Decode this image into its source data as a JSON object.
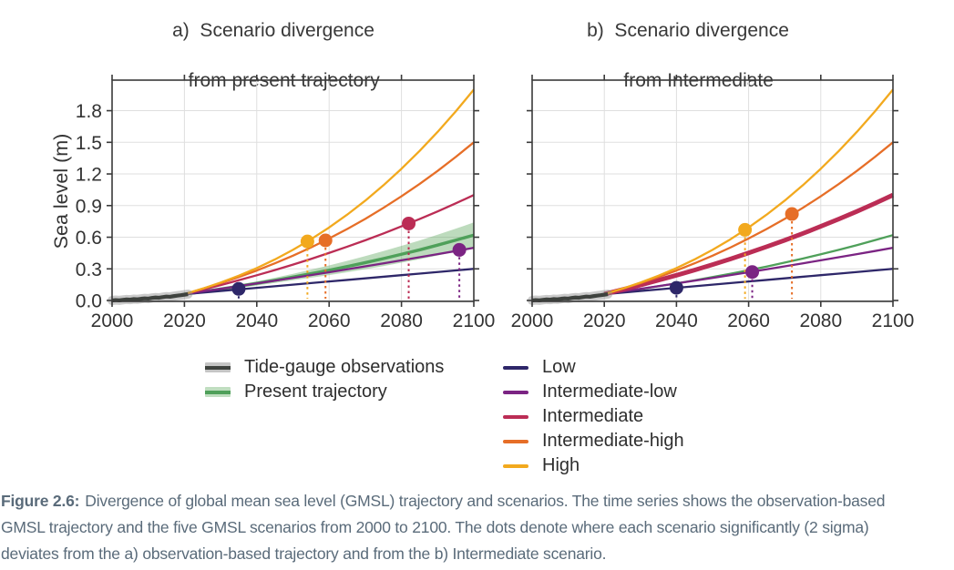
{
  "caption": {
    "label": "Figure 2.6:",
    "lines": [
      "Divergence of global mean sea level (GMSL) trajectory and scenarios. The time series shows the observation-based",
      "GMSL trajectory and the five GMSL scenarios from 2000 to 2100. The dots denote where each scenario significantly (2 sigma)",
      "deviates from the a) observation-based trajectory and from the b) Intermediate scenario."
    ],
    "color": "#5a6b7a"
  },
  "chart_data": {
    "type": "line",
    "ylabel": "Sea level (m)",
    "xlabel": "",
    "xlim": [
      2000,
      2100
    ],
    "ylim": [
      -0.02,
      2.09
    ],
    "grid": true,
    "xticks": [
      "2000",
      "2020",
      "2040",
      "2060",
      "2080",
      "2100"
    ],
    "yticks": [
      "0.0",
      "0.3",
      "0.6",
      "0.9",
      "1.2",
      "1.5",
      "1.8"
    ],
    "axis_color": "#3a3a3a",
    "grid_color": "#dfdfdf",
    "tick_text_color": "#333333",
    "observations": {
      "label": "Tide-gauge observations",
      "color": "#3e423e",
      "band_color": "rgba(140,140,140,0.45)",
      "years": [
        2000,
        2001,
        2002,
        2003,
        2004,
        2005,
        2006,
        2007,
        2008,
        2009,
        2010,
        2011,
        2012,
        2013,
        2014,
        2015,
        2016,
        2017,
        2018,
        2019,
        2020,
        2021
      ],
      "values": [
        0.0,
        0.004,
        0.001,
        0.006,
        0.01,
        0.008,
        0.013,
        0.011,
        0.016,
        0.02,
        0.018,
        0.024,
        0.028,
        0.026,
        0.032,
        0.037,
        0.035,
        0.041,
        0.046,
        0.05,
        0.055,
        0.06
      ]
    },
    "trajectory": {
      "label": "Present trajectory",
      "color": "#4fa05a",
      "band_color": "#62a962",
      "years": [
        2020,
        2025,
        2030,
        2035,
        2040,
        2045,
        2050,
        2055,
        2060,
        2065,
        2070,
        2075,
        2080,
        2085,
        2090,
        2095,
        2100
      ],
      "values": [
        0.06,
        0.084,
        0.109,
        0.135,
        0.162,
        0.191,
        0.222,
        0.254,
        0.287,
        0.322,
        0.359,
        0.397,
        0.438,
        0.48,
        0.525,
        0.572,
        0.62
      ],
      "band_halfwidth": [
        0.005,
        0.007,
        0.01,
        0.014,
        0.019,
        0.025,
        0.031,
        0.038,
        0.046,
        0.054,
        0.062,
        0.071,
        0.08,
        0.089,
        0.099,
        0.109,
        0.12
      ]
    },
    "scenario_years": [
      2020,
      2025,
      2030,
      2035,
      2040,
      2045,
      2050,
      2055,
      2060,
      2065,
      2070,
      2075,
      2080,
      2085,
      2090,
      2095,
      2100
    ],
    "scenarios": [
      {
        "name": "Low",
        "color": "#2e2769",
        "values": [
          0.06,
          0.075,
          0.09,
          0.105,
          0.12,
          0.135,
          0.15,
          0.165,
          0.18,
          0.195,
          0.21,
          0.225,
          0.24,
          0.255,
          0.27,
          0.285,
          0.3
        ]
      },
      {
        "name": "Intermediate-low",
        "color": "#7b2483",
        "values": [
          0.06,
          0.085,
          0.11,
          0.136,
          0.162,
          0.188,
          0.214,
          0.241,
          0.268,
          0.296,
          0.324,
          0.352,
          0.381,
          0.41,
          0.439,
          0.469,
          0.5
        ]
      },
      {
        "name": "Intermediate",
        "color": "#bb2d55",
        "values": [
          0.06,
          0.103,
          0.146,
          0.192,
          0.239,
          0.288,
          0.34,
          0.394,
          0.451,
          0.51,
          0.571,
          0.635,
          0.703,
          0.772,
          0.845,
          0.921,
          1.0
        ]
      },
      {
        "name": "Intermediate-high",
        "color": "#e66e27",
        "values": [
          0.06,
          0.111,
          0.164,
          0.222,
          0.284,
          0.352,
          0.425,
          0.503,
          0.588,
          0.678,
          0.774,
          0.878,
          0.988,
          1.105,
          1.229,
          1.361,
          1.5
        ]
      },
      {
        "name": "High",
        "color": "#f2a91e",
        "values": [
          0.06,
          0.112,
          0.17,
          0.235,
          0.307,
          0.389,
          0.48,
          0.581,
          0.692,
          0.814,
          0.947,
          1.092,
          1.249,
          1.418,
          1.599,
          1.793,
          2.0
        ]
      }
    ],
    "panels": [
      {
        "id": "a",
        "title_line1": "a)  Scenario divergence",
        "title_line2": "from present trajectory",
        "reference": "present trajectory",
        "show_trajectory_band": true,
        "thick_series": "",
        "dots": [
          {
            "scenario": "Low",
            "year": 2035,
            "value": 0.11
          },
          {
            "scenario": "High",
            "year": 2054,
            "value": 0.56
          },
          {
            "scenario": "Intermediate-high",
            "year": 2059,
            "value": 0.57
          },
          {
            "scenario": "Intermediate",
            "year": 2082,
            "value": 0.73
          },
          {
            "scenario": "Intermediate-low",
            "year": 2096,
            "value": 0.48
          }
        ]
      },
      {
        "id": "b",
        "title_line1": "b)  Scenario divergence",
        "title_line2": "from Intermediate",
        "reference": "Intermediate",
        "show_trajectory_band": false,
        "thick_series": "Intermediate",
        "dots": [
          {
            "scenario": "Low",
            "year": 2040,
            "value": 0.12
          },
          {
            "scenario": "High",
            "year": 2059,
            "value": 0.67
          },
          {
            "scenario": "Intermediate-low",
            "year": 2061,
            "value": 0.27
          },
          {
            "scenario": "Intermediate-high",
            "year": 2072,
            "value": 0.82
          }
        ]
      }
    ]
  }
}
